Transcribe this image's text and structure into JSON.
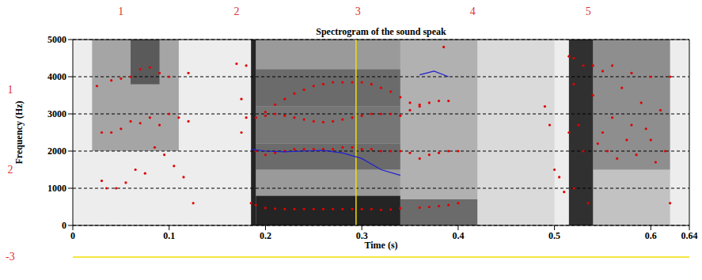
{
  "chart_data": {
    "type": "scatter",
    "title": "Spectrogram of the sound speak",
    "x_label": "Time (s)",
    "y_label": "Frequency (Hz)",
    "xlim": [
      0,
      0.64
    ],
    "xticks": [
      0,
      0.1,
      0.2,
      0.3,
      0.4,
      0.5,
      0.6,
      0.64
    ],
    "ylim": [
      0,
      5000
    ],
    "yticks": [
      0,
      1000,
      2000,
      3000,
      4000,
      5000
    ],
    "grid": true,
    "formants": {
      "color": "#e00000",
      "marker": "dot",
      "x": [
        0.025,
        0.03,
        0.03,
        0.035,
        0.04,
        0.04,
        0.045,
        0.05,
        0.05,
        0.055,
        0.06,
        0.06,
        0.065,
        0.07,
        0.07,
        0.075,
        0.08,
        0.08,
        0.085,
        0.09,
        0.09,
        0.095,
        0.1,
        0.1,
        0.105,
        0.11,
        0.115,
        0.12,
        0.12,
        0.125,
        0.17,
        0.175,
        0.175,
        0.18,
        0.18,
        0.185,
        0.19,
        0.2,
        0.21,
        0.22,
        0.23,
        0.24,
        0.25,
        0.26,
        0.27,
        0.28,
        0.29,
        0.3,
        0.31,
        0.32,
        0.33,
        0.34,
        0.36,
        0.37,
        0.38,
        0.39,
        0.4,
        0.19,
        0.2,
        0.21,
        0.22,
        0.23,
        0.24,
        0.25,
        0.26,
        0.27,
        0.28,
        0.29,
        0.3,
        0.31,
        0.32,
        0.33,
        0.34,
        0.35,
        0.36,
        0.37,
        0.38,
        0.39,
        0.4,
        0.19,
        0.2,
        0.21,
        0.22,
        0.23,
        0.24,
        0.25,
        0.26,
        0.27,
        0.28,
        0.29,
        0.3,
        0.31,
        0.32,
        0.33,
        0.34,
        0.35,
        0.36,
        0.37,
        0.38,
        0.39,
        0.2,
        0.21,
        0.22,
        0.23,
        0.24,
        0.25,
        0.26,
        0.27,
        0.28,
        0.29,
        0.3,
        0.31,
        0.32,
        0.33,
        0.34,
        0.35,
        0.36,
        0.385,
        0.49,
        0.495,
        0.5,
        0.505,
        0.51,
        0.515,
        0.515,
        0.52,
        0.52,
        0.52,
        0.525,
        0.53,
        0.53,
        0.535,
        0.54,
        0.54,
        0.545,
        0.55,
        0.55,
        0.555,
        0.56,
        0.56,
        0.565,
        0.57,
        0.575,
        0.58,
        0.58,
        0.585,
        0.59,
        0.595,
        0.6,
        0.6,
        0.605,
        0.61,
        0.615,
        0.62,
        0.62
      ],
      "y": [
        3750,
        2500,
        1200,
        1000,
        3900,
        2500,
        1000,
        3950,
        2600,
        1150,
        4000,
        2800,
        1500,
        4200,
        2750,
        1400,
        4250,
        2900,
        2100,
        4100,
        2700,
        1900,
        4000,
        3000,
        1600,
        2900,
        1300,
        4100,
        2800,
        600,
        4350,
        3400,
        2500,
        4300,
        2900,
        600,
        550,
        470,
        450,
        440,
        440,
        440,
        440,
        440,
        440,
        440,
        440,
        440,
        440,
        420,
        430,
        460,
        480,
        500,
        520,
        550,
        600,
        2000,
        1900,
        1950,
        2000,
        2050,
        2050,
        2050,
        2050,
        2050,
        2100,
        2100,
        2050,
        2050,
        2000,
        2000,
        2000,
        1950,
        1800,
        1900,
        1950,
        2000,
        2000,
        2900,
        2950,
        3000,
        2950,
        2900,
        2850,
        2800,
        2780,
        2800,
        2850,
        2900,
        2950,
        3000,
        3000,
        3000,
        2950,
        3100,
        3200,
        3300,
        3350,
        3350,
        3050,
        3250,
        3400,
        3550,
        3650,
        3750,
        3800,
        3850,
        3850,
        3850,
        3850,
        3800,
        3700,
        3600,
        3450,
        3300,
        3250,
        4800,
        3200,
        2700,
        1500,
        1300,
        900,
        4550,
        2500,
        4500,
        3800,
        1000,
        2700,
        4300,
        2000,
        600,
        4300,
        3500,
        2200,
        4150,
        2500,
        2000,
        4300,
        2900,
        1800,
        3700,
        2300,
        4100,
        2700,
        1900,
        3300,
        2600,
        4000,
        2300,
        1700,
        3100,
        2000,
        4000,
        600
      ]
    },
    "pitch": {
      "color": "#2020d0",
      "segments": [
        {
          "x": [
            0.185,
            0.2,
            0.22,
            0.24,
            0.26,
            0.28,
            0.3,
            0.32,
            0.34
          ],
          "y": [
            2050,
            2000,
            1980,
            2000,
            2020,
            1950,
            1800,
            1500,
            1350
          ]
        },
        {
          "x": [
            0.36,
            0.375,
            0.39
          ],
          "y": [
            4050,
            4150,
            4000
          ]
        }
      ]
    },
    "spectrogram": {
      "regions": [
        {
          "x": [
            0,
            0.64
          ],
          "y": [
            0,
            5000
          ],
          "intensity": 0.07
        },
        {
          "x": [
            0.02,
            0.11
          ],
          "y": [
            2000,
            5000
          ],
          "intensity": 0.3
        },
        {
          "x": [
            0.06,
            0.09
          ],
          "y": [
            3800,
            5000
          ],
          "intensity": 0.45
        },
        {
          "x": [
            0.185,
            0.19
          ],
          "y": [
            0,
            5000
          ],
          "intensity": 0.85
        },
        {
          "x": [
            0.19,
            0.34
          ],
          "y": [
            0,
            800
          ],
          "intensity": 0.85
        },
        {
          "x": [
            0.19,
            0.34
          ],
          "y": [
            800,
            1500
          ],
          "intensity": 0.35
        },
        {
          "x": [
            0.19,
            0.34
          ],
          "y": [
            1500,
            2200
          ],
          "intensity": 0.55
        },
        {
          "x": [
            0.19,
            0.34
          ],
          "y": [
            2200,
            3200
          ],
          "intensity": 0.5
        },
        {
          "x": [
            0.19,
            0.34
          ],
          "y": [
            3200,
            4200
          ],
          "intensity": 0.55
        },
        {
          "x": [
            0.19,
            0.34
          ],
          "y": [
            4200,
            5000
          ],
          "intensity": 0.35
        },
        {
          "x": [
            0.34,
            0.42
          ],
          "y": [
            0,
            700
          ],
          "intensity": 0.55
        },
        {
          "x": [
            0.34,
            0.42
          ],
          "y": [
            700,
            5000
          ],
          "intensity": 0.25
        },
        {
          "x": [
            0.42,
            0.5
          ],
          "y": [
            0,
            5000
          ],
          "intensity": 0.08
        },
        {
          "x": [
            0.515,
            0.54
          ],
          "y": [
            0,
            5000
          ],
          "intensity": 0.8
        },
        {
          "x": [
            0.54,
            0.62
          ],
          "y": [
            1500,
            5000
          ],
          "intensity": 0.4
        },
        {
          "x": [
            0.54,
            0.62
          ],
          "y": [
            0,
            1500
          ],
          "intensity": 0.18
        }
      ]
    },
    "annotations": [
      {
        "text": "1",
        "x": 0.05,
        "y": 5750,
        "color": "#e03030"
      },
      {
        "text": "2",
        "x": 0.17,
        "y": 5750,
        "color": "#e03030"
      },
      {
        "text": "3",
        "x": 0.296,
        "y": 5750,
        "color": "#e03030"
      },
      {
        "text": "4",
        "x": 0.415,
        "y": 5750,
        "color": "#e03030"
      },
      {
        "text": "5",
        "x": 0.535,
        "y": 5750,
        "color": "#e03030"
      },
      {
        "text": "1",
        "x": -0.065,
        "y": 3640,
        "color": "#e03030"
      },
      {
        "text": "2",
        "x": -0.065,
        "y": 1490,
        "color": "#e03030"
      },
      {
        "text": "-3",
        "x": -0.065,
        "y": -850,
        "color": "#e03030"
      }
    ],
    "cursor": {
      "x": 0.294,
      "y": -850,
      "color": "#f0e000"
    }
  }
}
